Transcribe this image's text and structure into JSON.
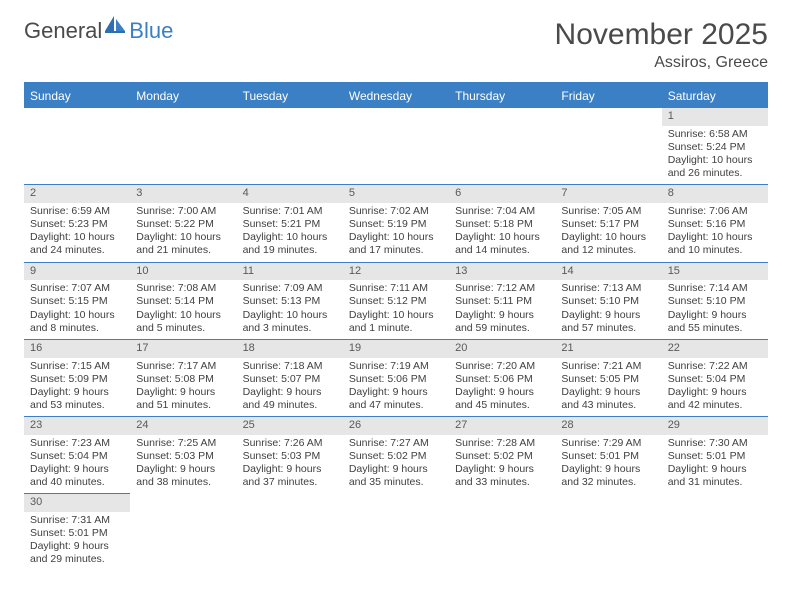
{
  "logo": {
    "text1": "General",
    "text2": "Blue"
  },
  "title": {
    "month": "November 2025",
    "location": "Assiros, Greece"
  },
  "colors": {
    "header_bg": "#3b7fc4",
    "header_text": "#ffffff",
    "daynum_bg": "#e6e6e6",
    "border": "#3b7fc4",
    "text": "#404040"
  },
  "weekdays": [
    "Sunday",
    "Monday",
    "Tuesday",
    "Wednesday",
    "Thursday",
    "Friday",
    "Saturday"
  ],
  "weeks": [
    [
      null,
      null,
      null,
      null,
      null,
      null,
      {
        "n": "1",
        "sr": "Sunrise: 6:58 AM",
        "ss": "Sunset: 5:24 PM",
        "dl": "Daylight: 10 hours and 26 minutes."
      }
    ],
    [
      {
        "n": "2",
        "sr": "Sunrise: 6:59 AM",
        "ss": "Sunset: 5:23 PM",
        "dl": "Daylight: 10 hours and 24 minutes."
      },
      {
        "n": "3",
        "sr": "Sunrise: 7:00 AM",
        "ss": "Sunset: 5:22 PM",
        "dl": "Daylight: 10 hours and 21 minutes."
      },
      {
        "n": "4",
        "sr": "Sunrise: 7:01 AM",
        "ss": "Sunset: 5:21 PM",
        "dl": "Daylight: 10 hours and 19 minutes."
      },
      {
        "n": "5",
        "sr": "Sunrise: 7:02 AM",
        "ss": "Sunset: 5:19 PM",
        "dl": "Daylight: 10 hours and 17 minutes."
      },
      {
        "n": "6",
        "sr": "Sunrise: 7:04 AM",
        "ss": "Sunset: 5:18 PM",
        "dl": "Daylight: 10 hours and 14 minutes."
      },
      {
        "n": "7",
        "sr": "Sunrise: 7:05 AM",
        "ss": "Sunset: 5:17 PM",
        "dl": "Daylight: 10 hours and 12 minutes."
      },
      {
        "n": "8",
        "sr": "Sunrise: 7:06 AM",
        "ss": "Sunset: 5:16 PM",
        "dl": "Daylight: 10 hours and 10 minutes."
      }
    ],
    [
      {
        "n": "9",
        "sr": "Sunrise: 7:07 AM",
        "ss": "Sunset: 5:15 PM",
        "dl": "Daylight: 10 hours and 8 minutes."
      },
      {
        "n": "10",
        "sr": "Sunrise: 7:08 AM",
        "ss": "Sunset: 5:14 PM",
        "dl": "Daylight: 10 hours and 5 minutes."
      },
      {
        "n": "11",
        "sr": "Sunrise: 7:09 AM",
        "ss": "Sunset: 5:13 PM",
        "dl": "Daylight: 10 hours and 3 minutes."
      },
      {
        "n": "12",
        "sr": "Sunrise: 7:11 AM",
        "ss": "Sunset: 5:12 PM",
        "dl": "Daylight: 10 hours and 1 minute."
      },
      {
        "n": "13",
        "sr": "Sunrise: 7:12 AM",
        "ss": "Sunset: 5:11 PM",
        "dl": "Daylight: 9 hours and 59 minutes."
      },
      {
        "n": "14",
        "sr": "Sunrise: 7:13 AM",
        "ss": "Sunset: 5:10 PM",
        "dl": "Daylight: 9 hours and 57 minutes."
      },
      {
        "n": "15",
        "sr": "Sunrise: 7:14 AM",
        "ss": "Sunset: 5:10 PM",
        "dl": "Daylight: 9 hours and 55 minutes."
      }
    ],
    [
      {
        "n": "16",
        "sr": "Sunrise: 7:15 AM",
        "ss": "Sunset: 5:09 PM",
        "dl": "Daylight: 9 hours and 53 minutes."
      },
      {
        "n": "17",
        "sr": "Sunrise: 7:17 AM",
        "ss": "Sunset: 5:08 PM",
        "dl": "Daylight: 9 hours and 51 minutes."
      },
      {
        "n": "18",
        "sr": "Sunrise: 7:18 AM",
        "ss": "Sunset: 5:07 PM",
        "dl": "Daylight: 9 hours and 49 minutes."
      },
      {
        "n": "19",
        "sr": "Sunrise: 7:19 AM",
        "ss": "Sunset: 5:06 PM",
        "dl": "Daylight: 9 hours and 47 minutes."
      },
      {
        "n": "20",
        "sr": "Sunrise: 7:20 AM",
        "ss": "Sunset: 5:06 PM",
        "dl": "Daylight: 9 hours and 45 minutes."
      },
      {
        "n": "21",
        "sr": "Sunrise: 7:21 AM",
        "ss": "Sunset: 5:05 PM",
        "dl": "Daylight: 9 hours and 43 minutes."
      },
      {
        "n": "22",
        "sr": "Sunrise: 7:22 AM",
        "ss": "Sunset: 5:04 PM",
        "dl": "Daylight: 9 hours and 42 minutes."
      }
    ],
    [
      {
        "n": "23",
        "sr": "Sunrise: 7:23 AM",
        "ss": "Sunset: 5:04 PM",
        "dl": "Daylight: 9 hours and 40 minutes."
      },
      {
        "n": "24",
        "sr": "Sunrise: 7:25 AM",
        "ss": "Sunset: 5:03 PM",
        "dl": "Daylight: 9 hours and 38 minutes."
      },
      {
        "n": "25",
        "sr": "Sunrise: 7:26 AM",
        "ss": "Sunset: 5:03 PM",
        "dl": "Daylight: 9 hours and 37 minutes."
      },
      {
        "n": "26",
        "sr": "Sunrise: 7:27 AM",
        "ss": "Sunset: 5:02 PM",
        "dl": "Daylight: 9 hours and 35 minutes."
      },
      {
        "n": "27",
        "sr": "Sunrise: 7:28 AM",
        "ss": "Sunset: 5:02 PM",
        "dl": "Daylight: 9 hours and 33 minutes."
      },
      {
        "n": "28",
        "sr": "Sunrise: 7:29 AM",
        "ss": "Sunset: 5:01 PM",
        "dl": "Daylight: 9 hours and 32 minutes."
      },
      {
        "n": "29",
        "sr": "Sunrise: 7:30 AM",
        "ss": "Sunset: 5:01 PM",
        "dl": "Daylight: 9 hours and 31 minutes."
      }
    ],
    [
      {
        "n": "30",
        "sr": "Sunrise: 7:31 AM",
        "ss": "Sunset: 5:01 PM",
        "dl": "Daylight: 9 hours and 29 minutes."
      },
      null,
      null,
      null,
      null,
      null,
      null
    ]
  ]
}
